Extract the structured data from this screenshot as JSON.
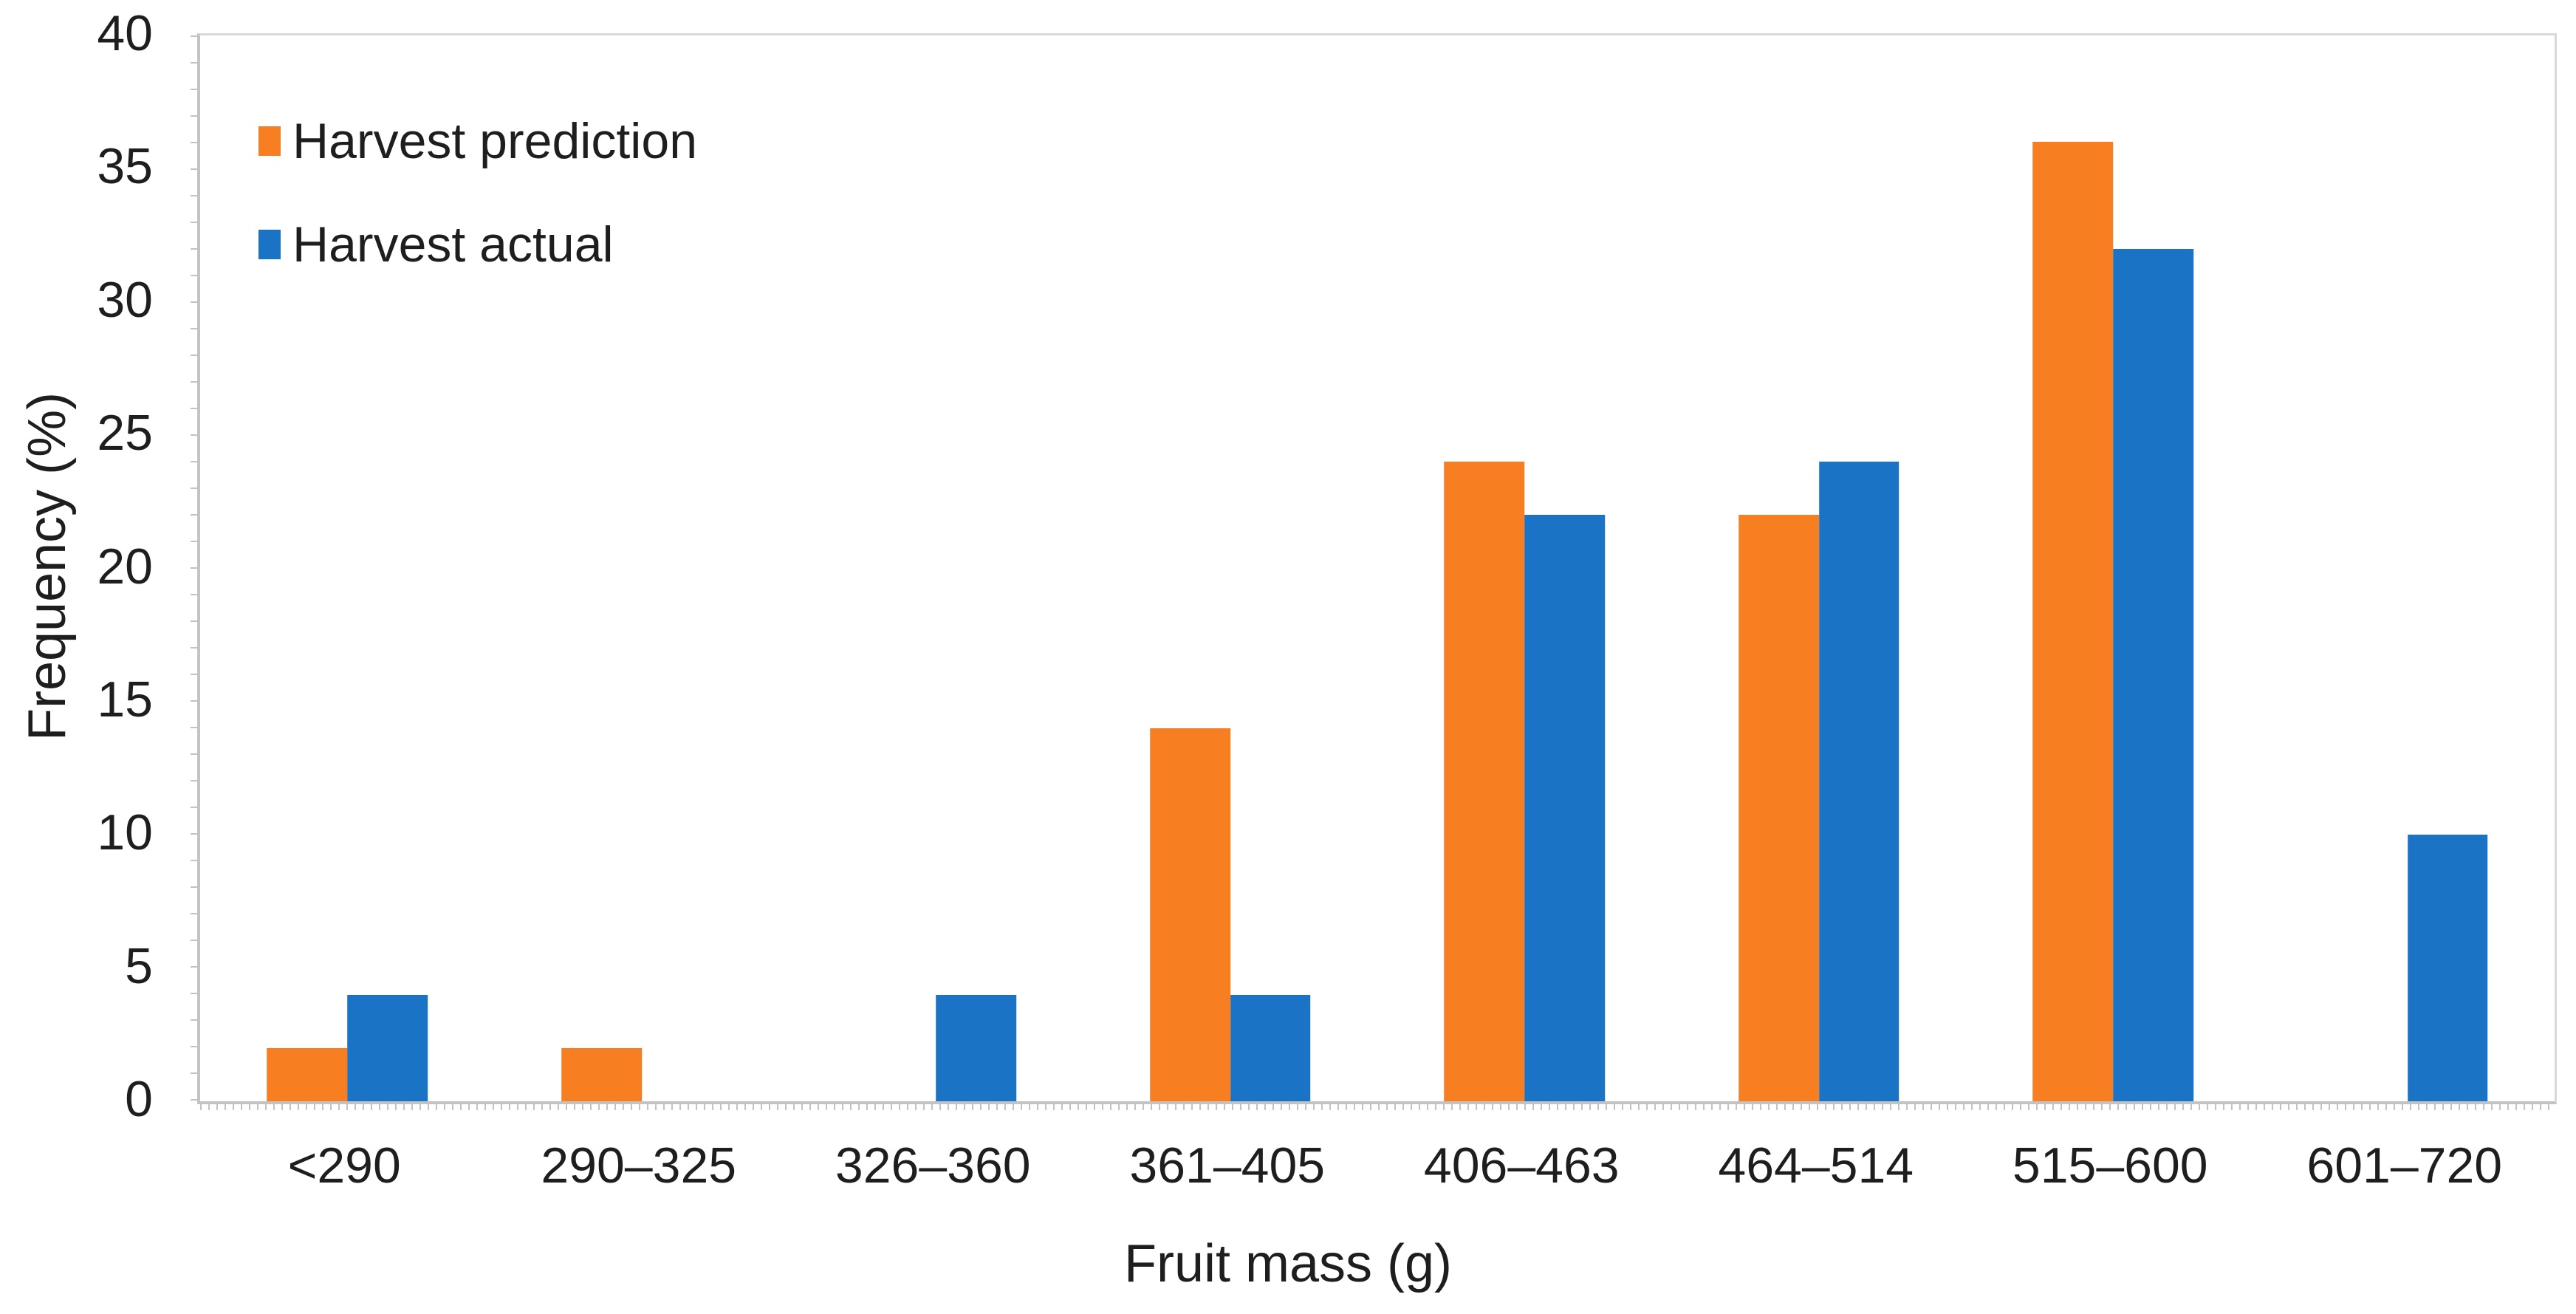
{
  "chart_data": {
    "type": "bar",
    "title": "",
    "categories": [
      "<290",
      "290–325",
      "326–360",
      "361–405",
      "406–463",
      "464–514",
      "515–600",
      "601–720"
    ],
    "series": [
      {
        "name": "Harvest prediction",
        "color": "#F77E21",
        "values": [
          2,
          2,
          0,
          14,
          24,
          22,
          36,
          0
        ]
      },
      {
        "name": "Harvest actual",
        "color": "#1B73C5",
        "values": [
          4,
          0,
          4,
          4,
          22,
          24,
          32,
          10
        ]
      }
    ],
    "xlabel": "Fruit mass (g)",
    "ylabel": "Frequency (%)",
    "ylim": [
      0,
      40
    ],
    "ytick_step": 5,
    "y_tick_labels": [
      "40",
      "35",
      "30",
      "25",
      "20",
      "15",
      "10",
      "5",
      "0"
    ],
    "legend_position": "top-left-inside",
    "grid": false,
    "colors": {
      "axis": "#C3C3C3",
      "plot_border": "#D8D8D8",
      "text": "#1E1E1E",
      "background": "#FFFFFF"
    }
  }
}
